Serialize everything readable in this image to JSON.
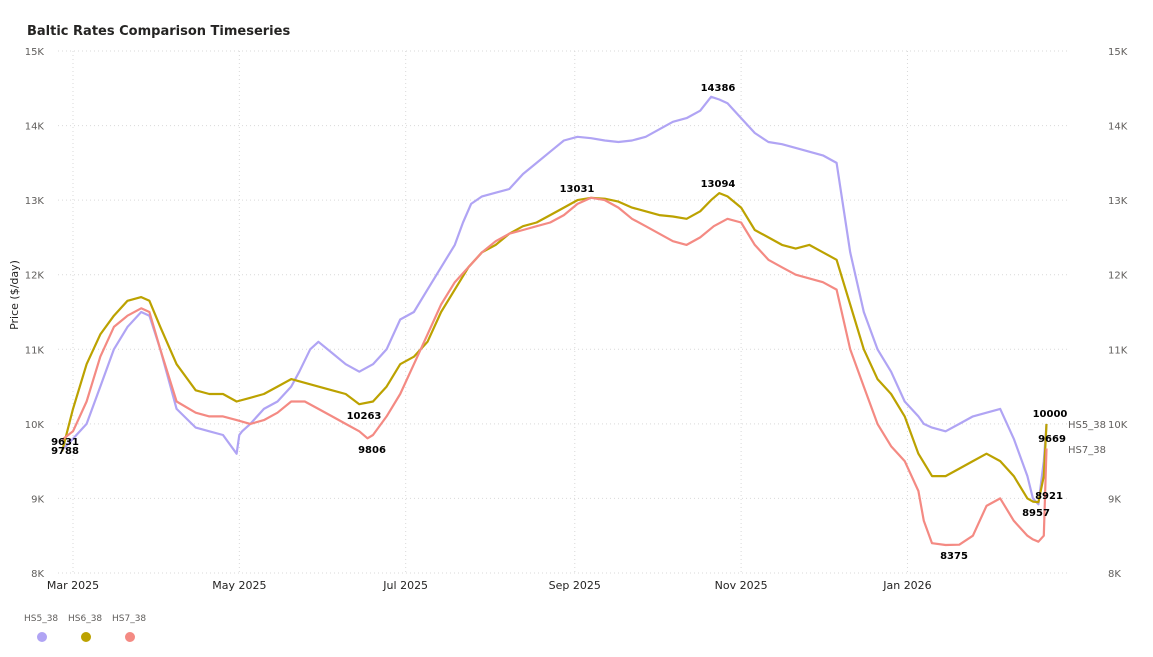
{
  "chart_data": {
    "type": "line",
    "title": "Baltic Rates Comparison Timeseries",
    "ylabel": "Price ($/day)",
    "ylim": [
      8000,
      15000
    ],
    "y_ticks": [
      8000,
      9000,
      10000,
      11000,
      12000,
      13000,
      14000,
      15000
    ],
    "y_tick_labels": [
      "8K",
      "9K",
      "10K",
      "11K",
      "12K",
      "13K",
      "14K",
      "15K"
    ],
    "x_ticks": [
      "Mar 2025",
      "May 2025",
      "Jul 2025",
      "Sep 2025",
      "Nov 2025",
      "Jan 2026"
    ],
    "x_range_days": [
      0,
      302
    ],
    "x_tick_days": [
      0,
      61,
      122,
      184,
      245,
      306
    ],
    "series": [
      {
        "name": "HS5_38",
        "color": "#b0a4f4",
        "x": [
          -4,
          0,
          5,
          10,
          15,
          20,
          25,
          28,
          32,
          38,
          45,
          50,
          55,
          60,
          61,
          62,
          65,
          70,
          75,
          80,
          83,
          87,
          90,
          95,
          100,
          105,
          110,
          115,
          120,
          125,
          130,
          135,
          140,
          143,
          146,
          150,
          155,
          160,
          165,
          170,
          175,
          180,
          185,
          190,
          195,
          200,
          205,
          210,
          215,
          220,
          225,
          230,
          234,
          237,
          240,
          245,
          250,
          255,
          260,
          265,
          270,
          275,
          280,
          285,
          290,
          295,
          300,
          305,
          310,
          312,
          315,
          320,
          325,
          330,
          335,
          340,
          345,
          350,
          352,
          354,
          356,
          357
        ],
        "values": [
          9650,
          9800,
          10000,
          10500,
          11000,
          11300,
          11500,
          11450,
          11000,
          10200,
          9950,
          9900,
          9850,
          9600,
          9850,
          9900,
          10000,
          10200,
          10300,
          10500,
          10700,
          11000,
          11100,
          10950,
          10800,
          10700,
          10800,
          11000,
          11400,
          11500,
          11800,
          12100,
          12400,
          12700,
          12950,
          13050,
          13100,
          13150,
          13350,
          13500,
          13650,
          13800,
          13850,
          13830,
          13800,
          13780,
          13800,
          13850,
          13950,
          14050,
          14100,
          14200,
          14386,
          14350,
          14300,
          14100,
          13900,
          13780,
          13750,
          13700,
          13650,
          13600,
          13500,
          12300,
          11500,
          11000,
          10700,
          10300,
          10100,
          10000,
          9950,
          9900,
          10000,
          10100,
          10150,
          10200,
          9800,
          9300,
          9000,
          8921,
          9500,
          10000
        ]
      },
      {
        "name": "HS6_38",
        "color": "#bca200",
        "x": [
          -4,
          0,
          5,
          10,
          15,
          20,
          25,
          28,
          32,
          38,
          45,
          50,
          55,
          60,
          65,
          70,
          75,
          80,
          85,
          90,
          95,
          100,
          105,
          110,
          115,
          120,
          125,
          130,
          135,
          140,
          145,
          150,
          155,
          160,
          165,
          170,
          175,
          180,
          185,
          190,
          195,
          200,
          205,
          210,
          215,
          220,
          225,
          230,
          234,
          237,
          240,
          245,
          250,
          255,
          260,
          265,
          270,
          275,
          280,
          285,
          290,
          295,
          300,
          305,
          310,
          315,
          320,
          325,
          330,
          335,
          340,
          345,
          350,
          352,
          354,
          356,
          357
        ],
        "values": [
          9631,
          10200,
          10800,
          11200,
          11450,
          11650,
          11700,
          11650,
          11300,
          10800,
          10450,
          10400,
          10400,
          10300,
          10350,
          10400,
          10500,
          10600,
          10550,
          10500,
          10450,
          10400,
          10263,
          10300,
          10500,
          10800,
          10900,
          11100,
          11500,
          11800,
          12100,
          12300,
          12400,
          12550,
          12650,
          12700,
          12800,
          12900,
          13000,
          13031,
          13020,
          12980,
          12900,
          12850,
          12800,
          12780,
          12750,
          12850,
          13000,
          13094,
          13050,
          12900,
          12600,
          12500,
          12400,
          12350,
          12400,
          12300,
          12200,
          11600,
          11000,
          10600,
          10400,
          10100,
          9600,
          9300,
          9300,
          9400,
          9500,
          9600,
          9500,
          9300,
          9000,
          8957,
          8950,
          9300,
          10000
        ]
      },
      {
        "name": "HS7_38",
        "color": "#f48a83",
        "x": [
          -4,
          0,
          5,
          10,
          15,
          20,
          25,
          28,
          32,
          38,
          45,
          50,
          55,
          60,
          65,
          70,
          75,
          80,
          85,
          90,
          95,
          100,
          105,
          108,
          110,
          115,
          120,
          125,
          130,
          135,
          140,
          145,
          150,
          155,
          160,
          165,
          170,
          175,
          180,
          185,
          190,
          195,
          200,
          205,
          210,
          215,
          220,
          225,
          230,
          235,
          240,
          245,
          250,
          255,
          260,
          265,
          270,
          275,
          280,
          285,
          290,
          295,
          300,
          305,
          310,
          312,
          315,
          320,
          325,
          330,
          335,
          340,
          345,
          350,
          352,
          354,
          356,
          357
        ],
        "values": [
          9788,
          9900,
          10300,
          10900,
          11300,
          11450,
          11550,
          11500,
          11000,
          10300,
          10150,
          10100,
          10100,
          10050,
          10000,
          10050,
          10150,
          10300,
          10300,
          10200,
          10100,
          10000,
          9900,
          9806,
          9850,
          10100,
          10400,
          10800,
          11200,
          11600,
          11900,
          12100,
          12300,
          12450,
          12550,
          12600,
          12650,
          12700,
          12800,
          12950,
          13031,
          13000,
          12900,
          12750,
          12650,
          12550,
          12450,
          12400,
          12500,
          12650,
          12750,
          12700,
          12400,
          12200,
          12100,
          12000,
          11950,
          11900,
          11800,
          11000,
          10500,
          10000,
          9700,
          9500,
          9100,
          8700,
          8400,
          8375,
          8380,
          8500,
          8900,
          9000,
          8700,
          8500,
          8450,
          8420,
          8500,
          9669
        ]
      }
    ],
    "data_labels": [
      {
        "text": "9631"
      },
      {
        "text": "9788"
      },
      {
        "text": "10263"
      },
      {
        "text": "9806"
      },
      {
        "text": "13031"
      },
      {
        "text": "14386"
      },
      {
        "text": "13094"
      },
      {
        "text": "8375"
      },
      {
        "text": "10000"
      },
      {
        "text": "9669"
      },
      {
        "text": "8921"
      },
      {
        "text": "8957"
      }
    ],
    "end_labels": [
      "HS5_38",
      "HS7_38"
    ],
    "legend": [
      "HS5_38",
      "HS6_38",
      "HS7_38"
    ]
  }
}
